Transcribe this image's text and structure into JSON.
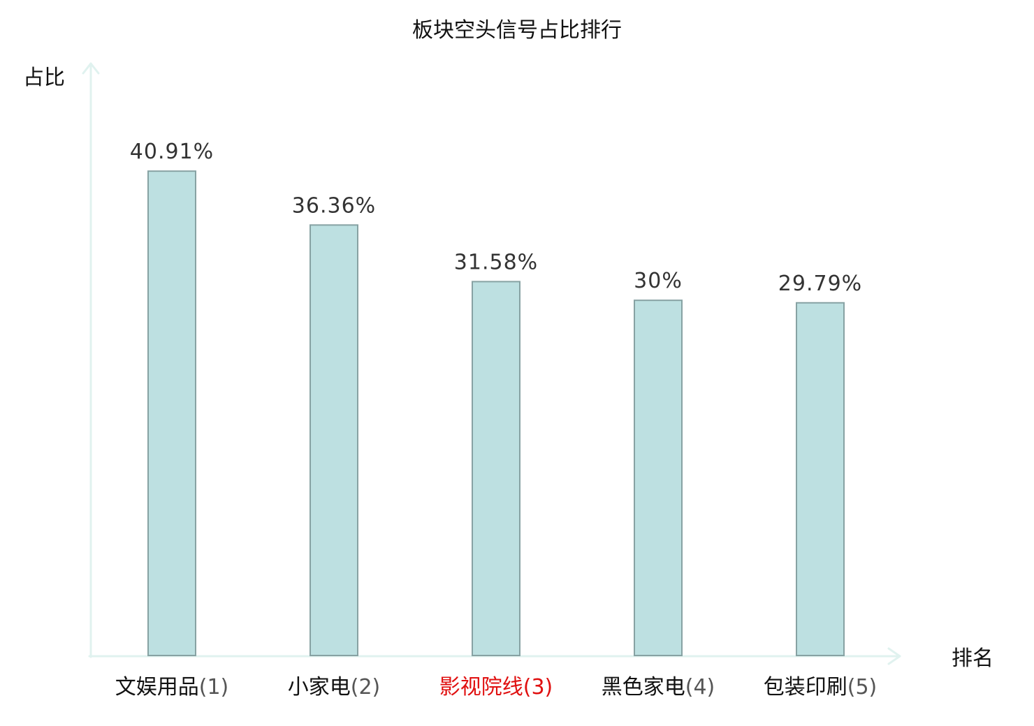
{
  "chart_data": {
    "type": "bar",
    "title": "板块空头信号占比排行",
    "ylabel": "占比",
    "xlabel": "排名",
    "ylim": [
      0,
      50
    ],
    "grid": false,
    "legend": "none",
    "categories": [
      {
        "name": "文娱用品",
        "rank": "(1)",
        "highlight": false
      },
      {
        "name": "小家电",
        "rank": "(2)",
        "highlight": false
      },
      {
        "name": "影视院线",
        "rank": "(3)",
        "highlight": true
      },
      {
        "name": "黑色家电",
        "rank": "(4)",
        "highlight": false
      },
      {
        "name": "包装印刷",
        "rank": "(5)",
        "highlight": false
      }
    ],
    "values": [
      40.91,
      36.36,
      31.58,
      30,
      29.79
    ],
    "value_labels": [
      "40.91%",
      "36.36%",
      "31.58%",
      "30%",
      "29.79%"
    ]
  },
  "colors": {
    "bar_fill": "#bde0e1",
    "bar_stroke": "#87a2a3",
    "axis": "#e0f2ef",
    "value_text": "#333333",
    "category_text": "#111111",
    "rank_text": "#555555",
    "highlight_text": "#e01010"
  }
}
